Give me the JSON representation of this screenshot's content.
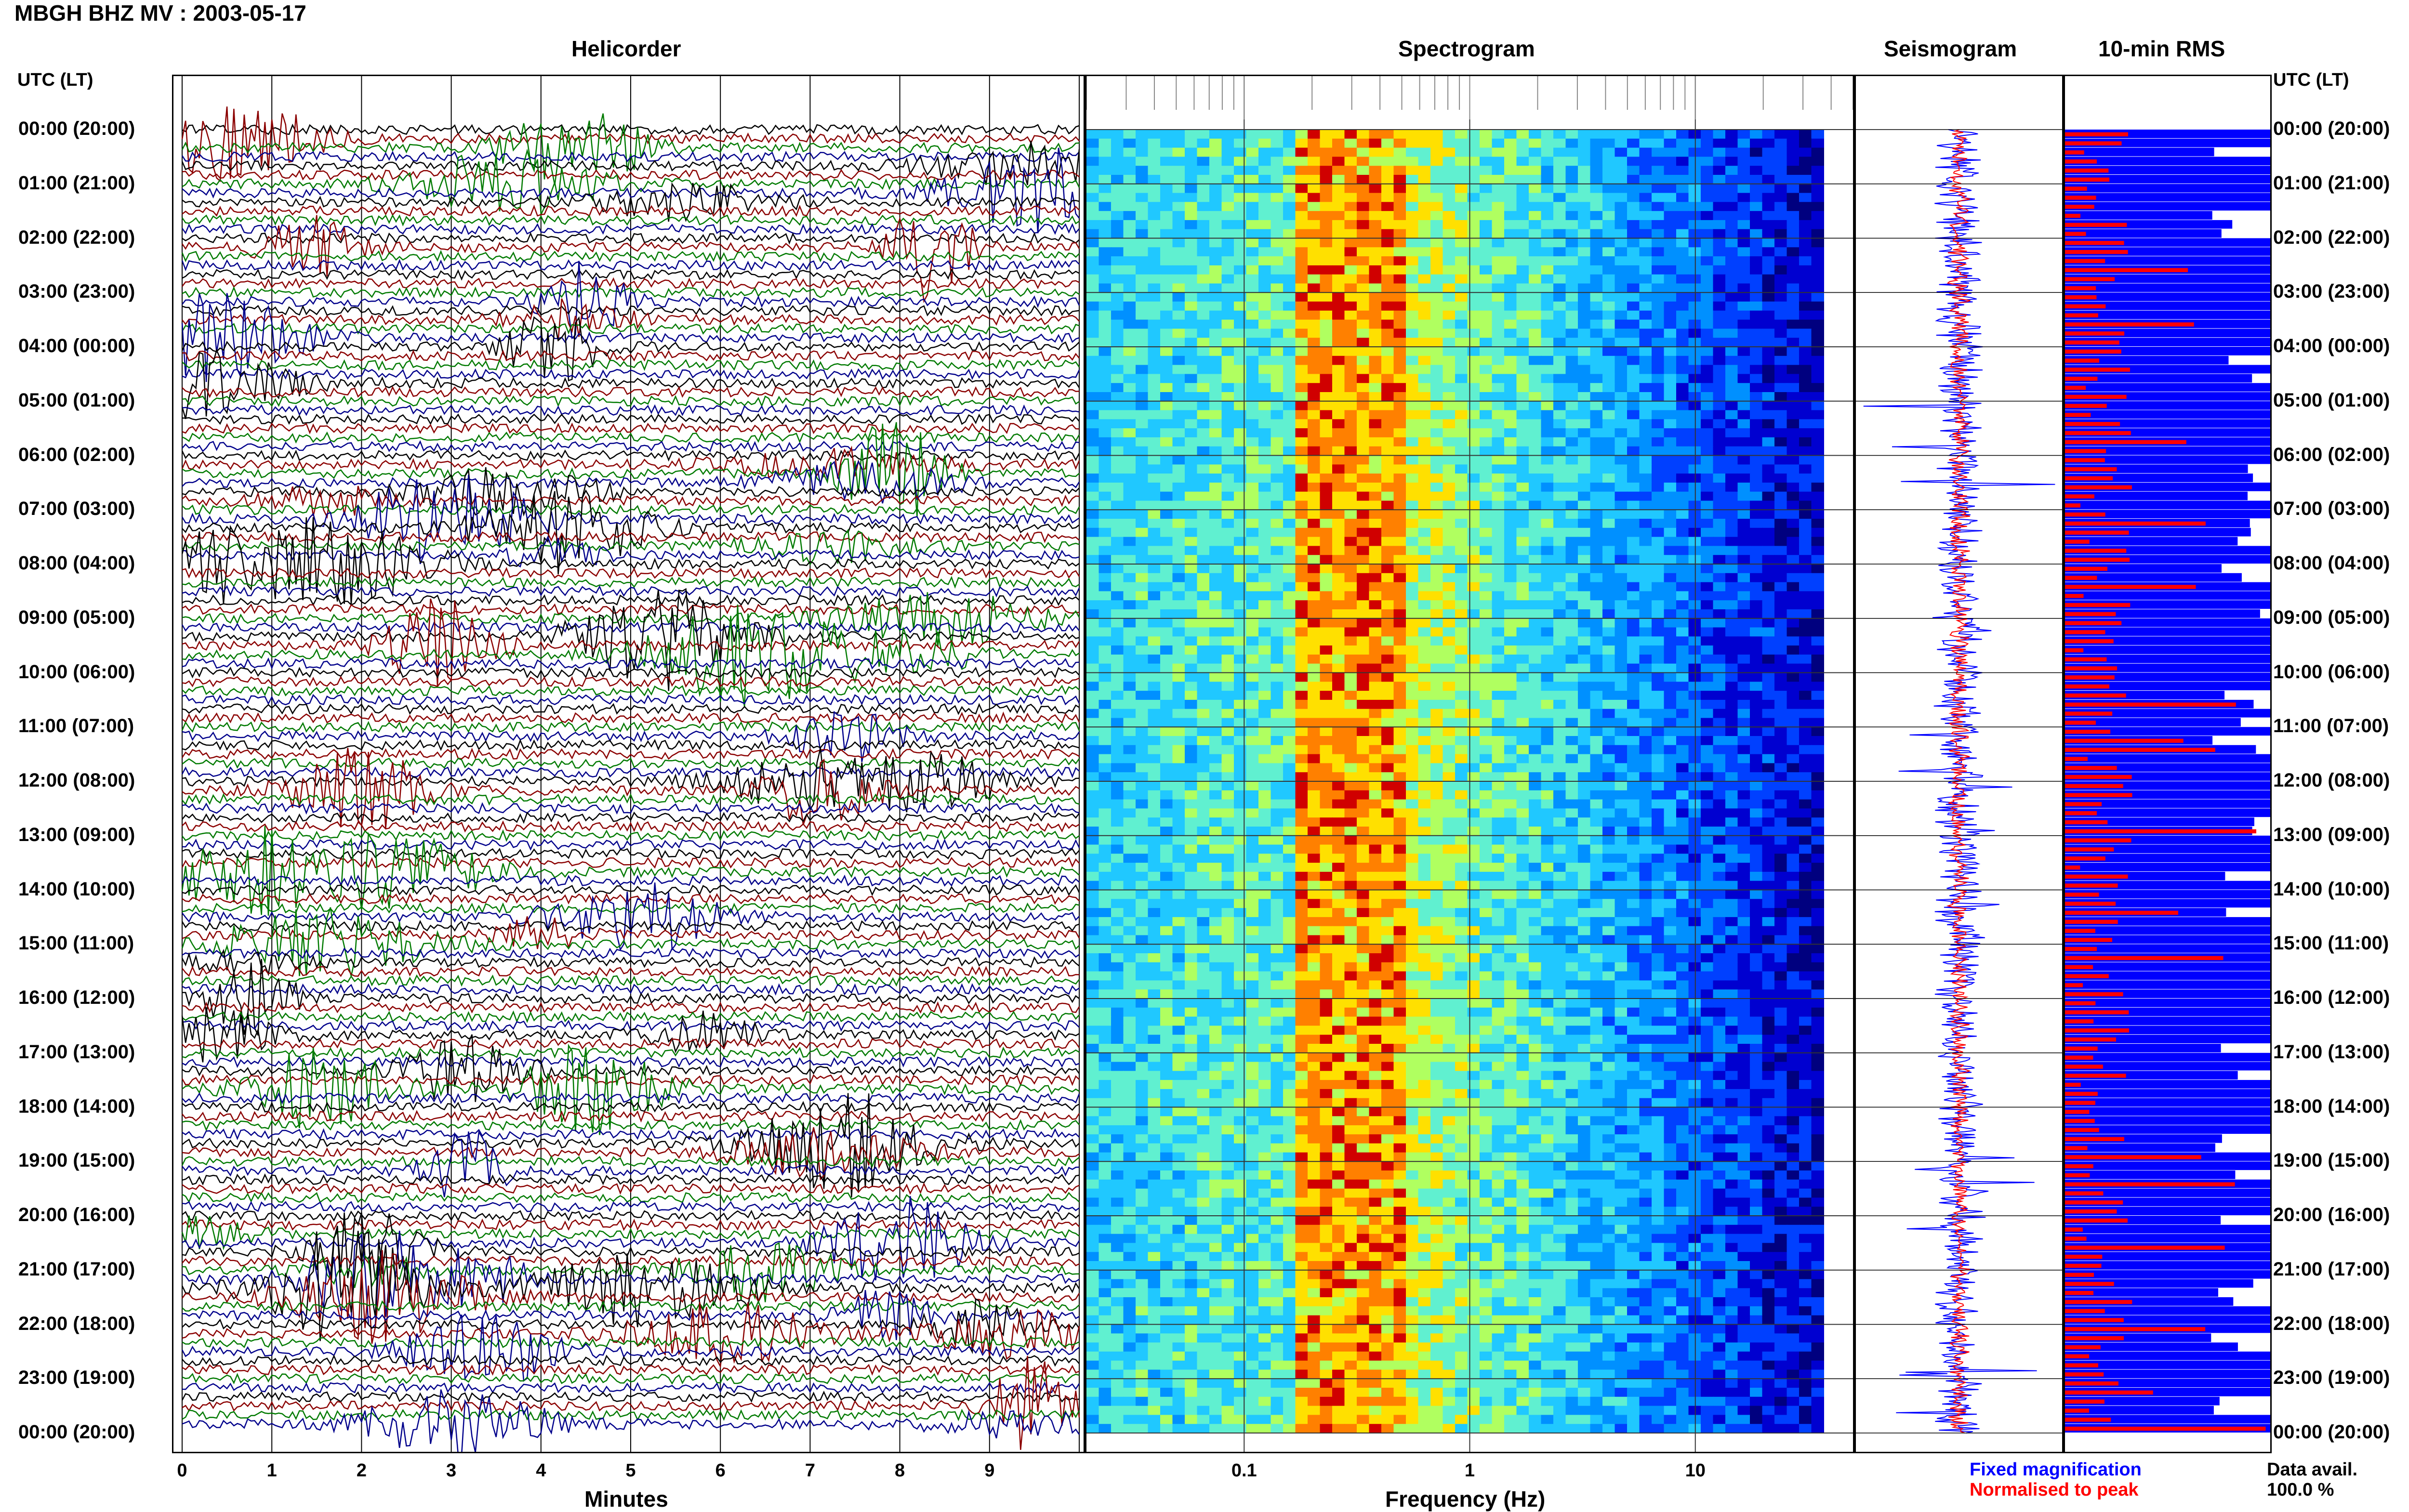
{
  "station_title": "MBGH BHZ MV : 2003-05-17",
  "utc_header_left": "UTC (LT)",
  "utc_header_right": "UTC (LT)",
  "panels": {
    "helicorder": "Helicorder",
    "spectrogram": "Spectrogram",
    "seismogram": "Seismogram",
    "rms": "10-min RMS"
  },
  "time_labels": [
    "00:00 (20:00)",
    "01:00 (21:00)",
    "02:00 (22:00)",
    "03:00 (23:00)",
    "04:00 (00:00)",
    "05:00 (01:00)",
    "06:00 (02:00)",
    "07:00 (03:00)",
    "08:00 (04:00)",
    "09:00 (05:00)",
    "10:00 (06:00)",
    "11:00 (07:00)",
    "12:00 (08:00)",
    "13:00 (09:00)",
    "14:00 (10:00)",
    "15:00 (11:00)",
    "16:00 (12:00)",
    "17:00 (13:00)",
    "18:00 (14:00)",
    "19:00 (15:00)",
    "20:00 (16:00)",
    "21:00 (17:00)",
    "22:00 (18:00)",
    "23:00 (19:00)",
    "00:00 (20:00)"
  ],
  "helicorder_axis": {
    "xlabel": "Minutes",
    "ticks": [
      "0",
      "1",
      "2",
      "3",
      "4",
      "5",
      "6",
      "7",
      "8",
      "9"
    ]
  },
  "spectrogram_axis": {
    "xlabel": "Frequency (Hz)",
    "ticks": [
      "0.1",
      "1",
      "10"
    ]
  },
  "legend": {
    "fixed": "Fixed magnification",
    "normalised": "Normalised to peak"
  },
  "data_avail": {
    "label": "Data avail.",
    "value": "100.0 %"
  },
  "colors": {
    "trace_black": "#000000",
    "trace_red": "#8b0000",
    "trace_green": "#007a00",
    "trace_blue": "#00008b",
    "rms_fixed": "#0000ff",
    "rms_norm": "#ff0000"
  },
  "chart_data": [
    {
      "type": "line",
      "title": "Helicorder",
      "xlabel": "Minutes",
      "xlim": [
        0,
        10
      ],
      "rows": 144,
      "series_colors": [
        "black",
        "red",
        "green",
        "blue"
      ]
    },
    {
      "type": "heatmap",
      "title": "Spectrogram",
      "xlabel": "Frequency (Hz)",
      "xscale": "log",
      "xlim": [
        0.02,
        50
      ],
      "rows": 144
    },
    {
      "type": "line",
      "title": "Seismogram",
      "series": [
        {
          "name": "Fixed magnification"
        },
        {
          "name": "Normalised to peak"
        }
      ]
    },
    {
      "type": "bar",
      "title": "10-min RMS",
      "orientation": "horizontal",
      "series": [
        {
          "name": "Fixed magnification",
          "color": "#0000ff"
        },
        {
          "name": "Normalised to peak",
          "color": "#ff0000"
        }
      ],
      "rows": 144
    }
  ]
}
